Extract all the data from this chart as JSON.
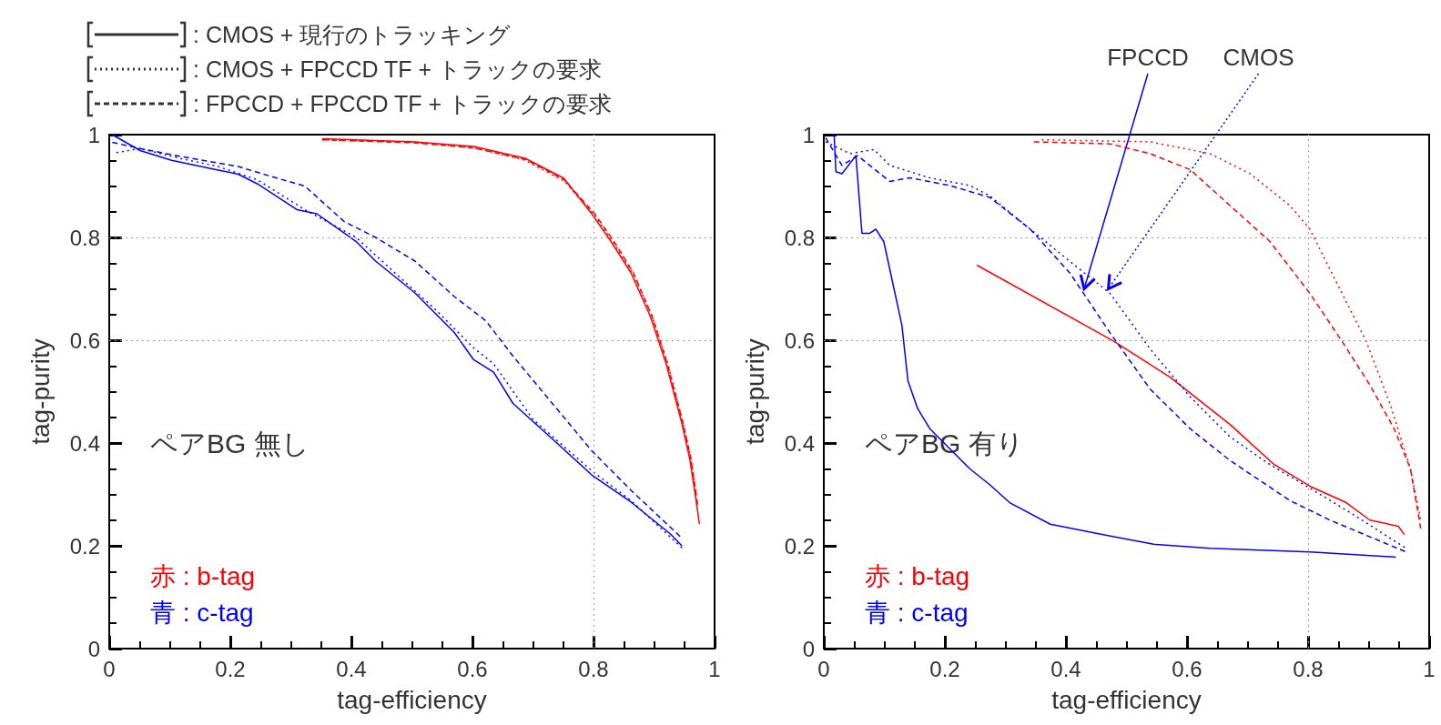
{
  "chart_data": [
    {
      "type": "line",
      "xlabel": "tag-efficiency",
      "ylabel": "tag-purity",
      "xlim": [
        0,
        1
      ],
      "ylim": [
        0,
        1
      ],
      "xticks": [
        0,
        0.2,
        0.4,
        0.6,
        0.8,
        1
      ],
      "yticks": [
        0,
        0.2,
        0.4,
        0.6,
        0.8,
        1
      ],
      "ref_lines": [
        {
          "axis": "x",
          "value": 0.8,
          "color": "#999999",
          "line_style": "dotted"
        },
        {
          "axis": "y",
          "value": 0.6,
          "color": "#999999",
          "line_style": "dotted"
        },
        {
          "axis": "y",
          "value": 0.8,
          "color": "#999999",
          "line_style": "dotted"
        }
      ],
      "annotations": [
        ": CMOS + 現行のトラッキング",
        ": CMOS + FPCCD TF + トラックの要求",
        ": FPCCD + FPCCD TF + トラックの要求",
        "ペアBG 無し",
        "赤 : b-tag",
        "青 : c-tag"
      ],
      "series": [
        {
          "color": "#ff0000",
          "line_style": "solid",
          "x": [
            0.352,
            0.505,
            0.602,
            0.687,
            0.751,
            0.797,
            0.829,
            0.862,
            0.894,
            0.92,
            0.946,
            0.959,
            0.969,
            0.975
          ],
          "values": [
            0.992,
            0.986,
            0.977,
            0.954,
            0.915,
            0.846,
            0.792,
            0.731,
            0.646,
            0.554,
            0.438,
            0.369,
            0.292,
            0.242
          ]
        },
        {
          "color": "#ff0000",
          "line_style": "dotted",
          "x": [
            0.352,
            0.505,
            0.602,
            0.687,
            0.751,
            0.8,
            0.832,
            0.865,
            0.897,
            0.923,
            0.948,
            0.961,
            0.97
          ],
          "values": [
            0.99,
            0.985,
            0.975,
            0.95,
            0.91,
            0.846,
            0.792,
            0.731,
            0.646,
            0.554,
            0.438,
            0.369,
            0.3
          ]
        },
        {
          "color": "#ff0000",
          "line_style": "dashed",
          "x": [
            0.352,
            0.505,
            0.602,
            0.687,
            0.751,
            0.802,
            0.834,
            0.866,
            0.897,
            0.922,
            0.948,
            0.961,
            0.972
          ],
          "values": [
            0.99,
            0.984,
            0.974,
            0.952,
            0.913,
            0.846,
            0.792,
            0.731,
            0.646,
            0.554,
            0.438,
            0.369,
            0.28
          ]
        },
        {
          "color": "#0000ff",
          "line_style": "solid",
          "x": [
            0.005,
            0.051,
            0.103,
            0.18,
            0.213,
            0.245,
            0.31,
            0.343,
            0.408,
            0.44,
            0.505,
            0.57,
            0.602,
            0.635,
            0.667,
            0.732,
            0.797,
            0.862,
            0.927,
            0.946
          ],
          "values": [
            1.0,
            0.969,
            0.95,
            0.931,
            0.923,
            0.904,
            0.854,
            0.846,
            0.792,
            0.754,
            0.692,
            0.615,
            0.562,
            0.538,
            0.477,
            0.408,
            0.338,
            0.285,
            0.223,
            0.2
          ]
        },
        {
          "color": "#0000ff",
          "line_style": "dotted",
          "x": [
            0.012,
            0.051,
            0.116,
            0.18,
            0.245,
            0.323,
            0.408,
            0.472,
            0.537,
            0.602,
            0.635,
            0.7,
            0.797,
            0.862,
            0.946
          ],
          "values": [
            0.965,
            0.973,
            0.954,
            0.938,
            0.912,
            0.854,
            0.8,
            0.731,
            0.662,
            0.585,
            0.554,
            0.446,
            0.346,
            0.288,
            0.196
          ]
        },
        {
          "color": "#0000ff",
          "line_style": "dashed",
          "x": [
            0.005,
            0.051,
            0.116,
            0.213,
            0.278,
            0.323,
            0.388,
            0.44,
            0.505,
            0.57,
            0.622,
            0.667,
            0.732,
            0.797,
            0.862,
            0.946
          ],
          "values": [
            0.985,
            0.973,
            0.958,
            0.938,
            0.915,
            0.9,
            0.831,
            0.8,
            0.754,
            0.685,
            0.638,
            0.569,
            0.477,
            0.385,
            0.308,
            0.215
          ]
        }
      ]
    },
    {
      "type": "line",
      "xlabel": "tag-efficiency",
      "ylabel": "tag-purity",
      "xlim": [
        0,
        1
      ],
      "ylim": [
        0,
        1
      ],
      "xticks": [
        0,
        0.2,
        0.4,
        0.6,
        0.8,
        1
      ],
      "yticks": [
        0,
        0.2,
        0.4,
        0.6,
        0.8,
        1
      ],
      "ref_lines": [
        {
          "axis": "x",
          "value": 0.8,
          "color": "#999999",
          "line_style": "dotted"
        },
        {
          "axis": "y",
          "value": 0.6,
          "color": "#999999",
          "line_style": "dotted"
        },
        {
          "axis": "y",
          "value": 0.8,
          "color": "#999999",
          "line_style": "dotted"
        }
      ],
      "annotations": [
        "ペアBG 有り",
        "赤 : b-tag",
        "青 : c-tag",
        {
          "text": "FPCCD",
          "x": 0.43,
          "y": 0.7
        },
        {
          "text": "CMOS",
          "x": 0.47,
          "y": 0.7
        }
      ],
      "series": [
        {
          "color": "#ff0000",
          "line_style": "solid",
          "x": [
            0.253,
            0.479,
            0.572,
            0.671,
            0.744,
            0.803,
            0.863,
            0.902,
            0.949,
            0.959
          ],
          "values": [
            0.746,
            0.598,
            0.528,
            0.436,
            0.358,
            0.316,
            0.284,
            0.25,
            0.238,
            0.222
          ]
        },
        {
          "color": "#ff0000",
          "line_style": "dotted",
          "x": [
            0.36,
            0.539,
            0.638,
            0.704,
            0.77,
            0.803,
            0.836,
            0.896,
            0.936,
            0.969,
            0.986
          ],
          "values": [
            0.99,
            0.986,
            0.963,
            0.924,
            0.862,
            0.816,
            0.738,
            0.598,
            0.474,
            0.35,
            0.25
          ]
        },
        {
          "color": "#ff0000",
          "line_style": "dashed",
          "x": [
            0.347,
            0.473,
            0.539,
            0.605,
            0.671,
            0.737,
            0.803,
            0.856,
            0.902,
            0.942,
            0.969,
            0.986
          ],
          "values": [
            0.986,
            0.982,
            0.963,
            0.932,
            0.862,
            0.792,
            0.691,
            0.598,
            0.513,
            0.428,
            0.35,
            0.234
          ]
        },
        {
          "color": "#0000ff",
          "line_style": "solid",
          "x": [
            0.017,
            0.02,
            0.03,
            0.053,
            0.063,
            0.076,
            0.086,
            0.099,
            0.109,
            0.129,
            0.139,
            0.155,
            0.175,
            0.241,
            0.274,
            0.307,
            0.374,
            0.473,
            0.545,
            0.638,
            0.803,
            0.945
          ],
          "values": [
            1.0,
            0.928,
            0.924,
            0.959,
            0.808,
            0.808,
            0.816,
            0.792,
            0.738,
            0.629,
            0.521,
            0.467,
            0.428,
            0.35,
            0.319,
            0.284,
            0.242,
            0.219,
            0.203,
            0.195,
            0.188,
            0.178
          ]
        },
        {
          "color": "#0000ff",
          "line_style": "dotted",
          "x": [
            0.003,
            0.043,
            0.083,
            0.109,
            0.175,
            0.241,
            0.274,
            0.341,
            0.407,
            0.473,
            0.539,
            0.605,
            0.671,
            0.737,
            0.803,
            0.869,
            0.962
          ],
          "values": [
            0.986,
            0.963,
            0.971,
            0.94,
            0.916,
            0.901,
            0.881,
            0.816,
            0.753,
            0.691,
            0.583,
            0.49,
            0.412,
            0.358,
            0.312,
            0.265,
            0.195
          ]
        },
        {
          "color": "#0000ff",
          "line_style": "dashed",
          "x": [
            0.003,
            0.03,
            0.056,
            0.076,
            0.109,
            0.142,
            0.208,
            0.274,
            0.341,
            0.407,
            0.473,
            0.539,
            0.605,
            0.671,
            0.77,
            0.836,
            0.962
          ],
          "values": [
            0.994,
            0.94,
            0.959,
            0.94,
            0.909,
            0.916,
            0.901,
            0.878,
            0.816,
            0.73,
            0.614,
            0.505,
            0.428,
            0.366,
            0.288,
            0.25,
            0.188
          ]
        }
      ]
    }
  ]
}
